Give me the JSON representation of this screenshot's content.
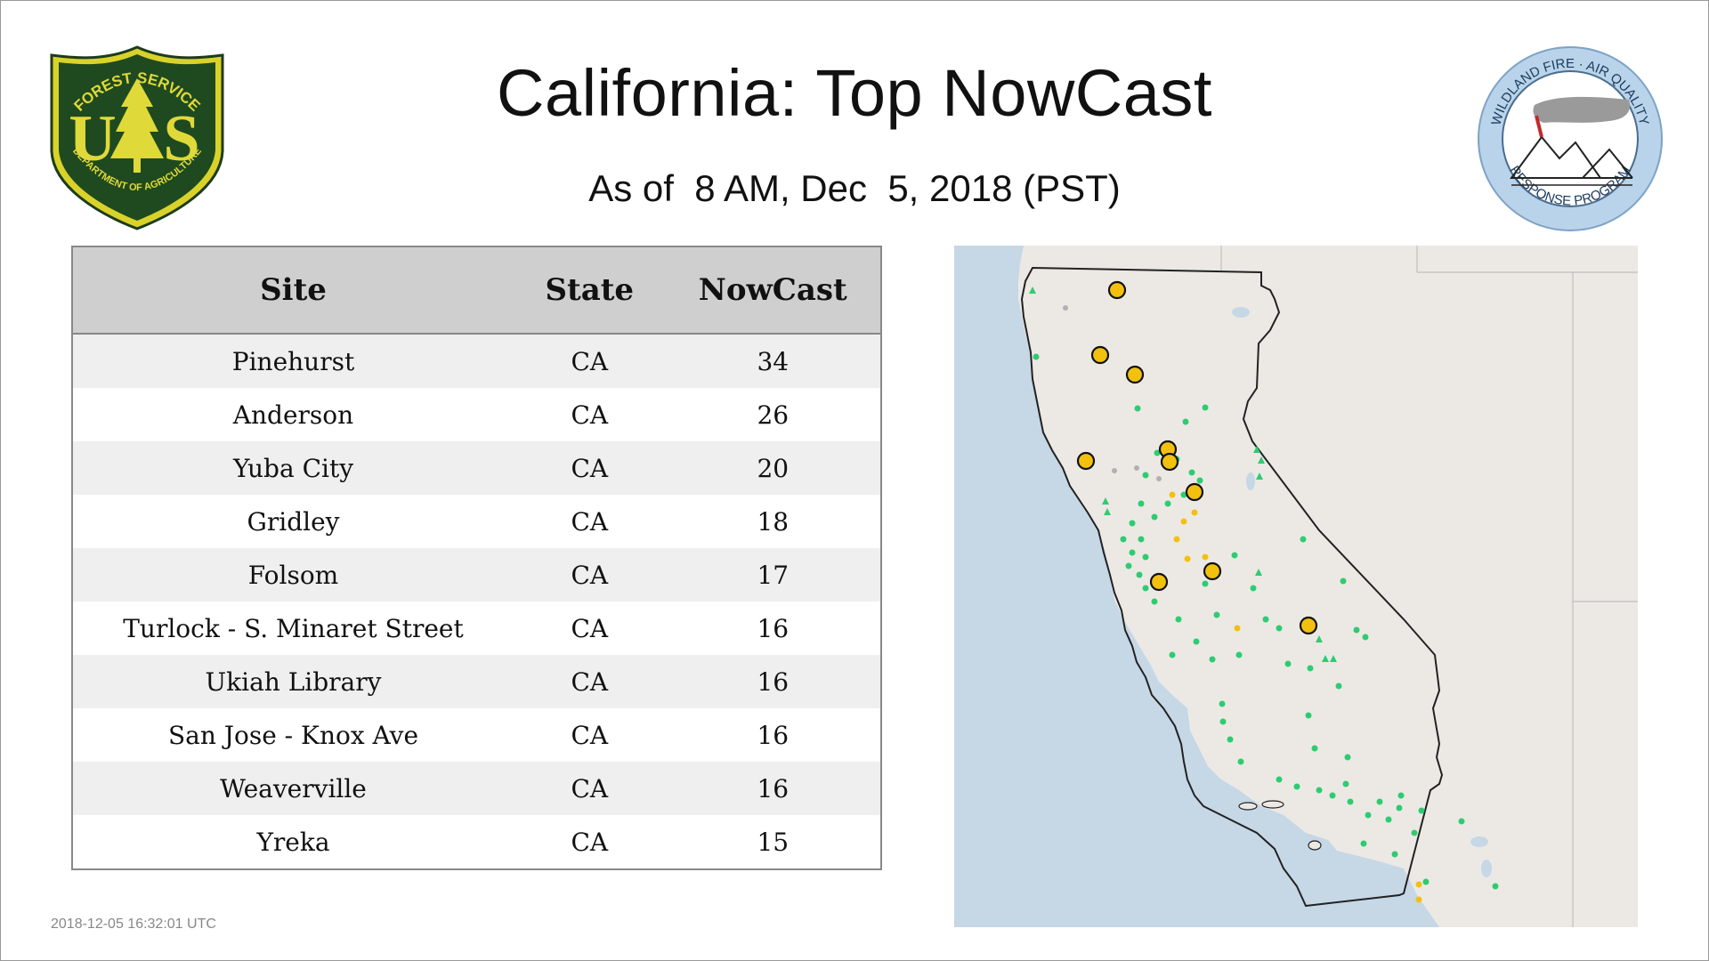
{
  "header": {
    "title": "California: Top NowCast",
    "subtitle": "As of  8 AM, Dec  5, 2018 (PST)"
  },
  "logos": {
    "forest_service": {
      "top_text": "FOREST SERVICE",
      "letters": "US",
      "bottom_text": "DEPARTMENT OF AGRICULTURE"
    },
    "wildland_fire": {
      "top_text": "WILDLAND FIRE · AIR QUALITY",
      "bottom_text": "RESPONSE PROGRAM"
    }
  },
  "table": {
    "headers": [
      "Site",
      "State",
      "NowCast"
    ],
    "rows": [
      [
        "Pinehurst",
        "CA",
        "34"
      ],
      [
        "Anderson",
        "CA",
        "26"
      ],
      [
        "Yuba City",
        "CA",
        "20"
      ],
      [
        "Gridley",
        "CA",
        "18"
      ],
      [
        "Folsom",
        "CA",
        "17"
      ],
      [
        "Turlock - S. Minaret Street",
        "CA",
        "16"
      ],
      [
        "Ukiah Library",
        "CA",
        "16"
      ],
      [
        "San Jose - Knox Ave",
        "CA",
        "16"
      ],
      [
        "Weaverville",
        "CA",
        "16"
      ],
      [
        "Yreka",
        "CA",
        "15"
      ]
    ]
  },
  "map": {
    "colors": {
      "ocean": "#c6d7e6",
      "land": "#ece9e5",
      "good": "#2ecc71",
      "moderate": "#f2c10f",
      "nodata": "#b0b0b0",
      "outline": "#222222"
    }
  },
  "footer": {
    "timestamp": "2018-12-05 16:32:01 UTC"
  }
}
